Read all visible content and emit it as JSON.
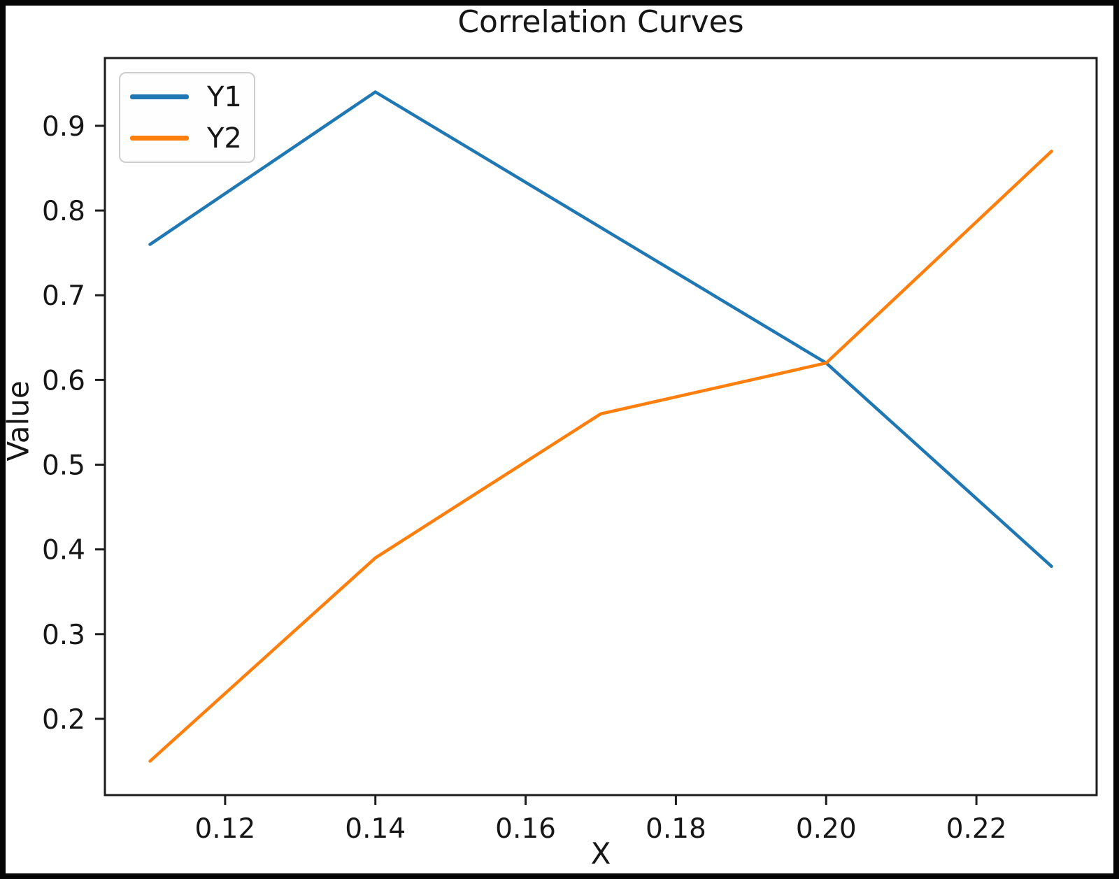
{
  "chart_data": {
    "type": "line",
    "title": "Correlation Curves",
    "xlabel": "X",
    "ylabel": "Value",
    "x": [
      0.11,
      0.14,
      0.17,
      0.2,
      0.23
    ],
    "series": [
      {
        "name": "Y1",
        "color": "#1f77b4",
        "values": [
          0.76,
          0.94,
          0.78,
          0.62,
          0.38
        ]
      },
      {
        "name": "Y2",
        "color": "#ff7f0e",
        "values": [
          0.15,
          0.39,
          0.56,
          0.62,
          0.87
        ]
      }
    ],
    "xlim": [
      0.104,
      0.236
    ],
    "ylim": [
      0.11,
      0.98
    ],
    "xticks": [
      "0.12",
      "0.14",
      "0.16",
      "0.18",
      "0.20",
      "0.22"
    ],
    "xtick_values": [
      0.12,
      0.14,
      0.16,
      0.18,
      0.2,
      0.22
    ],
    "yticks": [
      "0.2",
      "0.3",
      "0.4",
      "0.5",
      "0.6",
      "0.7",
      "0.8",
      "0.9"
    ],
    "ytick_values": [
      0.2,
      0.3,
      0.4,
      0.5,
      0.6,
      0.7,
      0.8,
      0.9
    ],
    "grid": false,
    "legend_position": "upper left",
    "spine_color": "#1c1c1c",
    "figure_border_color": "#060606",
    "line_width": 4.5
  }
}
